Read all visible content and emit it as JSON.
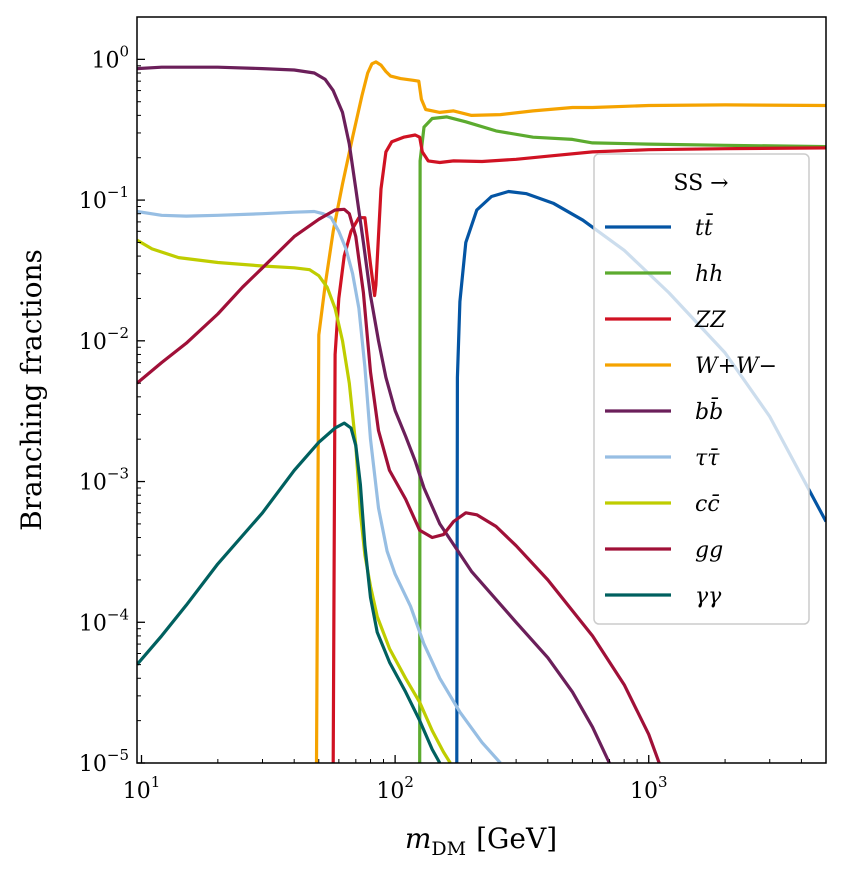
{
  "chart_data": {
    "type": "line",
    "title": "",
    "xlabel": "m_DM [GeV]",
    "xlabel_main": "m",
    "xlabel_sub": "DM",
    "xlabel_unit": "[GeV]",
    "ylabel": "Branching fractions",
    "xscale": "log",
    "yscale": "log",
    "xlim": [
      9.6,
      5000
    ],
    "ylim": [
      1e-05,
      2
    ],
    "x_ticks": [
      {
        "base": "10",
        "exp": "1",
        "value": 10
      },
      {
        "base": "10",
        "exp": "2",
        "value": 100
      },
      {
        "base": "10",
        "exp": "3",
        "value": 1000
      }
    ],
    "y_ticks": [
      {
        "base": "10",
        "exp": "0",
        "value": 1
      },
      {
        "base": "10",
        "exp": "−1",
        "value": 0.1
      },
      {
        "base": "10",
        "exp": "−2",
        "value": 0.01
      },
      {
        "base": "10",
        "exp": "−3",
        "value": 0.001
      },
      {
        "base": "10",
        "exp": "−4",
        "value": 0.0001
      },
      {
        "base": "10",
        "exp": "−5",
        "value": 1e-05
      }
    ],
    "legend_title": "SS →",
    "legend_position": "right",
    "series": [
      {
        "name": "tt̄",
        "color": "#0455a4",
        "points": [
          [
            175,
            1e-05
          ],
          [
            176,
            0.0055
          ],
          [
            180,
            0.019
          ],
          [
            190,
            0.05
          ],
          [
            210,
            0.085
          ],
          [
            240,
            0.106
          ],
          [
            280,
            0.115
          ],
          [
            330,
            0.111
          ],
          [
            420,
            0.095
          ],
          [
            550,
            0.072
          ],
          [
            800,
            0.044
          ],
          [
            1200,
            0.022
          ],
          [
            2000,
            0.0082
          ],
          [
            3000,
            0.0029
          ],
          [
            5000,
            0.00052
          ]
        ]
      },
      {
        "name": "hh",
        "color": "#5cab2f",
        "points": [
          [
            125,
            1e-05
          ],
          [
            125.5,
            0.19
          ],
          [
            130,
            0.33
          ],
          [
            140,
            0.38
          ],
          [
            160,
            0.39
          ],
          [
            190,
            0.36
          ],
          [
            250,
            0.31
          ],
          [
            350,
            0.28
          ],
          [
            500,
            0.27
          ],
          [
            600,
            0.255
          ],
          [
            1000,
            0.25
          ],
          [
            2000,
            0.245
          ],
          [
            5000,
            0.24
          ]
        ]
      },
      {
        "name": "ZZ",
        "color": "#d01223",
        "points": [
          [
            57,
            1e-05
          ],
          [
            58,
            0.008
          ],
          [
            60,
            0.02
          ],
          [
            63,
            0.04
          ],
          [
            67,
            0.06
          ],
          [
            72,
            0.075
          ],
          [
            76,
            0.075
          ],
          [
            80,
            0.035
          ],
          [
            83,
            0.021
          ],
          [
            84,
            0.025
          ],
          [
            88,
            0.12
          ],
          [
            92,
            0.22
          ],
          [
            97,
            0.26
          ],
          [
            108,
            0.28
          ],
          [
            120,
            0.29
          ],
          [
            125,
            0.28
          ],
          [
            128,
            0.22
          ],
          [
            135,
            0.19
          ],
          [
            150,
            0.185
          ],
          [
            170,
            0.19
          ],
          [
            220,
            0.188
          ],
          [
            300,
            0.195
          ],
          [
            400,
            0.205
          ],
          [
            600,
            0.22
          ],
          [
            1000,
            0.228
          ],
          [
            2000,
            0.232
          ],
          [
            5000,
            0.235
          ]
        ]
      },
      {
        "name": "W+W−",
        "color": "#f5a300",
        "points": [
          [
            49,
            1e-05
          ],
          [
            50,
            0.011
          ],
          [
            53,
            0.025
          ],
          [
            57,
            0.06
          ],
          [
            62,
            0.13
          ],
          [
            68,
            0.28
          ],
          [
            74,
            0.55
          ],
          [
            78,
            0.8
          ],
          [
            81,
            0.93
          ],
          [
            84,
            0.96
          ],
          [
            88,
            0.91
          ],
          [
            92,
            0.82
          ],
          [
            96,
            0.76
          ],
          [
            105,
            0.73
          ],
          [
            118,
            0.71
          ],
          [
            124,
            0.7
          ],
          [
            127,
            0.52
          ],
          [
            132,
            0.44
          ],
          [
            150,
            0.42
          ],
          [
            170,
            0.43
          ],
          [
            200,
            0.4
          ],
          [
            260,
            0.405
          ],
          [
            350,
            0.43
          ],
          [
            500,
            0.455
          ],
          [
            600,
            0.455
          ],
          [
            1000,
            0.47
          ],
          [
            2000,
            0.475
          ],
          [
            5000,
            0.47
          ]
        ]
      },
      {
        "name": "bb̄",
        "color": "#6b1f5a",
        "points": [
          [
            9.6,
            0.86
          ],
          [
            12,
            0.88
          ],
          [
            20,
            0.88
          ],
          [
            30,
            0.86
          ],
          [
            40,
            0.84
          ],
          [
            48,
            0.8
          ],
          [
            53,
            0.72
          ],
          [
            57,
            0.6
          ],
          [
            62,
            0.42
          ],
          [
            66,
            0.25
          ],
          [
            70,
            0.12
          ],
          [
            75,
            0.05
          ],
          [
            80,
            0.021
          ],
          [
            86,
            0.01
          ],
          [
            92,
            0.0055
          ],
          [
            100,
            0.0032
          ],
          [
            110,
            0.0021
          ],
          [
            120,
            0.0014
          ],
          [
            130,
            0.0009
          ],
          [
            150,
            0.0005
          ],
          [
            200,
            0.00023
          ],
          [
            300,
            0.0001
          ],
          [
            400,
            5.6e-05
          ],
          [
            500,
            3.2e-05
          ],
          [
            600,
            1.8e-05
          ],
          [
            700,
            1e-05
          ]
        ]
      },
      {
        "name": "ττ̄",
        "color": "#97bee3",
        "points": [
          [
            9.6,
            0.083
          ],
          [
            12,
            0.078
          ],
          [
            15,
            0.077
          ],
          [
            20,
            0.078
          ],
          [
            30,
            0.08
          ],
          [
            40,
            0.082
          ],
          [
            48,
            0.083
          ],
          [
            52,
            0.08
          ],
          [
            56,
            0.075
          ],
          [
            60,
            0.06
          ],
          [
            64,
            0.045
          ],
          [
            68,
            0.03
          ],
          [
            72,
            0.017
          ],
          [
            76,
            0.0065
          ],
          [
            80,
            0.002
          ],
          [
            86,
            0.00065
          ],
          [
            93,
            0.00032
          ],
          [
            100,
            0.00022
          ],
          [
            115,
            0.00013
          ],
          [
            130,
            7e-05
          ],
          [
            150,
            4e-05
          ],
          [
            180,
            2.3e-05
          ],
          [
            220,
            1.4e-05
          ],
          [
            260,
            1e-05
          ]
        ]
      },
      {
        "name": "cc̄",
        "color": "#bfcd00",
        "points": [
          [
            9.6,
            0.052
          ],
          [
            11,
            0.045
          ],
          [
            14,
            0.039
          ],
          [
            20,
            0.036
          ],
          [
            30,
            0.034
          ],
          [
            40,
            0.033
          ],
          [
            46,
            0.032
          ],
          [
            50,
            0.029
          ],
          [
            54,
            0.024
          ],
          [
            58,
            0.017
          ],
          [
            62,
            0.01
          ],
          [
            66,
            0.005
          ],
          [
            70,
            0.0018
          ],
          [
            73,
            0.0006
          ],
          [
            76,
            0.0003
          ],
          [
            80,
            0.00018
          ],
          [
            85,
            0.00011
          ],
          [
            95,
            6.5e-05
          ],
          [
            110,
            4e-05
          ],
          [
            125,
            2.7e-05
          ],
          [
            140,
            1.7e-05
          ],
          [
            155,
            1.2e-05
          ],
          [
            165,
            1e-05
          ]
        ]
      },
      {
        "name": "gg",
        "color": "#a01038",
        "points": [
          [
            9.6,
            0.005
          ],
          [
            12,
            0.007
          ],
          [
            15,
            0.0096
          ],
          [
            20,
            0.0155
          ],
          [
            25,
            0.024
          ],
          [
            30,
            0.033
          ],
          [
            40,
            0.055
          ],
          [
            50,
            0.073
          ],
          [
            58,
            0.085
          ],
          [
            63,
            0.086
          ],
          [
            66,
            0.08
          ],
          [
            70,
            0.055
          ],
          [
            75,
            0.022
          ],
          [
            80,
            0.006
          ],
          [
            86,
            0.0023
          ],
          [
            95,
            0.0012
          ],
          [
            110,
            0.00075
          ],
          [
            125,
            0.00045
          ],
          [
            140,
            0.0004
          ],
          [
            155,
            0.00042
          ],
          [
            170,
            0.00052
          ],
          [
            190,
            0.0006
          ],
          [
            210,
            0.00058
          ],
          [
            250,
            0.00048
          ],
          [
            300,
            0.00035
          ],
          [
            400,
            0.0002
          ],
          [
            600,
            8e-05
          ],
          [
            800,
            3.6e-05
          ],
          [
            1000,
            1.6e-05
          ],
          [
            1100,
            1e-05
          ]
        ]
      },
      {
        "name": "γγ",
        "color": "#00605f",
        "points": [
          [
            9.6,
            5e-05
          ],
          [
            12,
            8e-05
          ],
          [
            15,
            0.000132
          ],
          [
            20,
            0.00026
          ],
          [
            30,
            0.0006
          ],
          [
            40,
            0.0012
          ],
          [
            50,
            0.0019
          ],
          [
            58,
            0.0024
          ],
          [
            63,
            0.0026
          ],
          [
            67,
            0.0024
          ],
          [
            70,
            0.0018
          ],
          [
            73,
            0.00095
          ],
          [
            76,
            0.00035
          ],
          [
            80,
            0.00015
          ],
          [
            85,
            8.5e-05
          ],
          [
            95,
            5.2e-05
          ],
          [
            110,
            3.2e-05
          ],
          [
            125,
            2e-05
          ],
          [
            140,
            1.25e-05
          ],
          [
            150,
            1e-05
          ]
        ]
      }
    ]
  }
}
